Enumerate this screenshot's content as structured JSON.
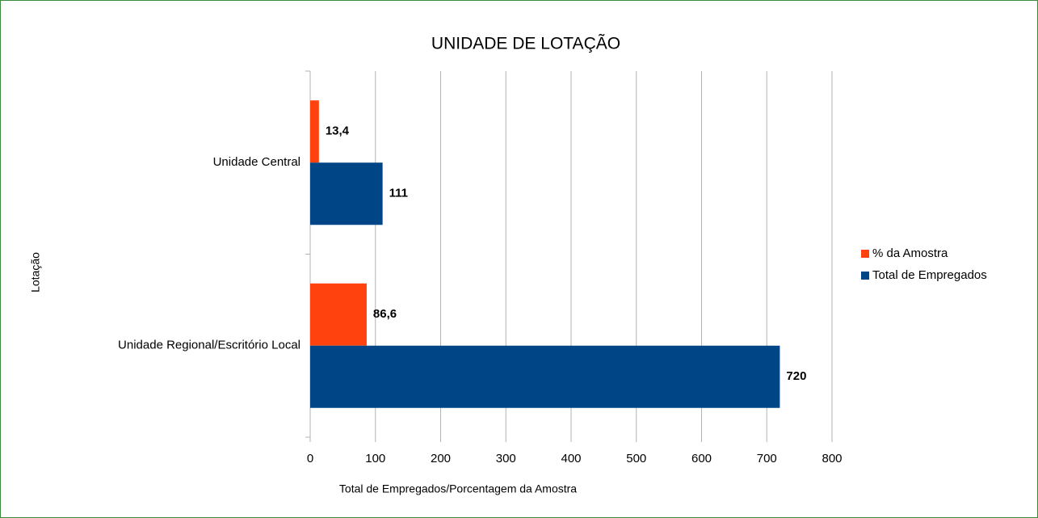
{
  "chart_data": {
    "type": "hbar",
    "title": "UNIDADE DE LOTAÇÃO",
    "x_label": "Total de Empregados/Porcentagem da Amostra",
    "y_label": "Lotação",
    "categories": [
      "Unidade Central",
      "Unidade Regional/Escritório Local"
    ],
    "series": [
      {
        "name": "% da Amostra",
        "color": "#ff420e",
        "values": [
          13.4,
          86.6
        ],
        "value_labels": [
          "13,4",
          "86,6"
        ]
      },
      {
        "name": "Total de Empregados",
        "color": "#004586",
        "values": [
          111,
          720
        ]
      }
    ],
    "xlim": [
      0,
      800
    ],
    "xticks": [
      0,
      100,
      200,
      300,
      400,
      500,
      600,
      700,
      800
    ],
    "grid": true,
    "legend": "right"
  }
}
